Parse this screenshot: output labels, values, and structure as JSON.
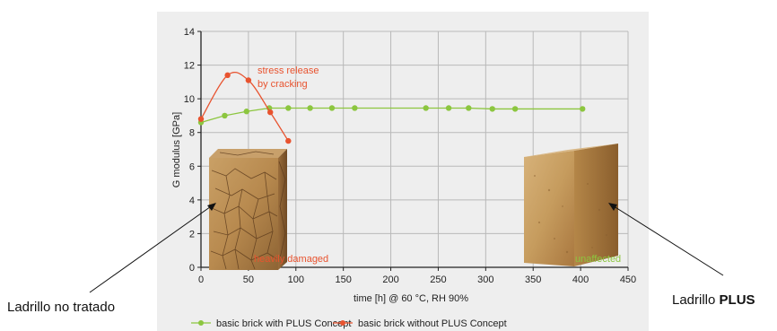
{
  "chart_data": {
    "type": "line",
    "xlabel": "time [h] @ 60 °C, RH 90%",
    "ylabel": "G modulus [GPa]",
    "xlim": [
      0,
      450
    ],
    "ylim": [
      0,
      14
    ],
    "xticks": [
      "0",
      "50",
      "100",
      "150",
      "200",
      "250",
      "300",
      "350",
      "400",
      "450"
    ],
    "yticks": [
      "0",
      "2",
      "4",
      "6",
      "8",
      "10",
      "12",
      "14"
    ],
    "grid": true,
    "legend_position": "bottom",
    "series": [
      {
        "name": "basic brick with PLUS Concept",
        "color": "#8cc63f",
        "x": [
          0,
          25,
          48,
          72,
          92,
          115,
          138,
          162,
          237,
          261,
          282,
          307,
          331,
          402
        ],
        "y": [
          8.6,
          9.0,
          9.25,
          9.45,
          9.45,
          9.45,
          9.45,
          9.45,
          9.45,
          9.45,
          9.45,
          9.4,
          9.4,
          9.4
        ]
      },
      {
        "name": "basic brick without PLUS Concept",
        "color": "#e8532f",
        "x": [
          0,
          28,
          50,
          73,
          92
        ],
        "y": [
          8.8,
          11.4,
          11.1,
          9.2,
          7.5
        ]
      }
    ],
    "annotations": [
      {
        "text": "stress release",
        "color": "#e8532f"
      },
      {
        "text": "by cracking",
        "color": "#e8532f"
      },
      {
        "text": "heavily damaged",
        "color": "#e8532f"
      },
      {
        "text": "unaffected",
        "color": "#8cc63f"
      }
    ]
  },
  "labels": {
    "left": "Ladrillo no tratado",
    "right_prefix": "Ladrillo ",
    "right_bold": "PLUS"
  },
  "images": {
    "left_brick": "cracked-brick-sample",
    "right_brick": "intact-brick-sample"
  }
}
